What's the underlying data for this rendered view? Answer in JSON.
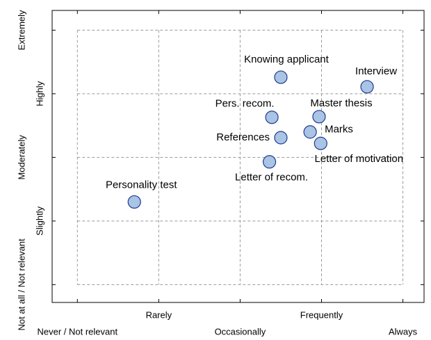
{
  "chart_data": {
    "type": "scatter",
    "labels": [
      "Knowing applicant",
      "Interview",
      "Pers. recom.",
      "Master thesis",
      "Marks",
      "References",
      "Letter of motivation",
      "Letter of recom.",
      "Personality test"
    ],
    "x": [
      3.5,
      4.56,
      3.39,
      3.97,
      3.86,
      3.5,
      3.99,
      3.36,
      1.7
    ],
    "values": [
      4.26,
      4.11,
      3.63,
      3.64,
      3.4,
      3.31,
      3.22,
      2.93,
      2.3
    ],
    "color": "#a9c4e4",
    "edge_color": "#1f3a8f",
    "xlim": [
      0.69,
      5.26
    ],
    "ylim": [
      0.72,
      5.31
    ],
    "xticks": [
      {
        "value": 1,
        "label": "Never / Not relevant"
      },
      {
        "value": 2,
        "label": "Rarely"
      },
      {
        "value": 3,
        "label": "Occasionally"
      },
      {
        "value": 4,
        "label": "Frequently"
      },
      {
        "value": 5,
        "label": "Always"
      }
    ],
    "yticks": [
      {
        "value": 1,
        "label": "Not at all / Not relevant"
      },
      {
        "value": 2,
        "label": "Slightly"
      },
      {
        "value": 3,
        "label": "Moderately"
      },
      {
        "value": 4,
        "label": "Highly"
      },
      {
        "value": 5,
        "label": "Extremely"
      }
    ],
    "grid": true
  }
}
